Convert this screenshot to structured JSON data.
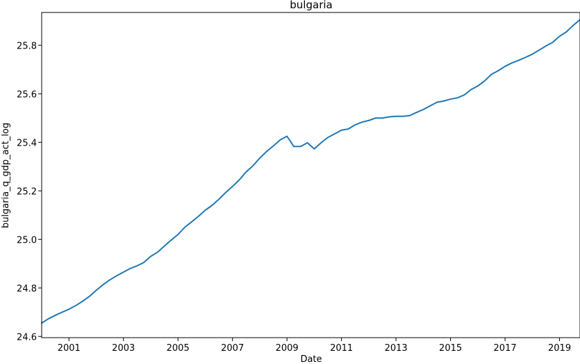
{
  "chart_data": {
    "type": "line",
    "title": "bulgaria",
    "xlabel": "Date",
    "ylabel": "bulgaria_q_gdp_act_log",
    "x_tick_labels": [
      "2001",
      "2003",
      "2005",
      "2007",
      "2009",
      "2011",
      "2013",
      "2015",
      "2017",
      "2019"
    ],
    "y_tick_labels": [
      "24.6",
      "24.8",
      "25.0",
      "25.2",
      "25.4",
      "25.6",
      "25.8"
    ],
    "y_ticks": [
      24.6,
      24.8,
      25.0,
      25.2,
      25.4,
      25.6,
      25.8
    ],
    "x_ticks": [
      2001,
      2003,
      2005,
      2007,
      2009,
      2011,
      2013,
      2015,
      2017,
      2019
    ],
    "xlim": [
      2000.0,
      2019.75
    ],
    "ylim": [
      24.595,
      25.935
    ],
    "grid": false,
    "series_color": "#1f77b4",
    "series": [
      {
        "x": [
          2000.0,
          2000.25,
          2000.5,
          2000.75,
          2001.0,
          2001.25,
          2001.5,
          2001.75,
          2002.0,
          2002.25,
          2002.5,
          2002.75,
          2003.0,
          2003.25,
          2003.5,
          2003.75,
          2004.0,
          2004.25,
          2004.5,
          2004.75,
          2005.0,
          2005.25,
          2005.5,
          2005.75,
          2006.0,
          2006.25,
          2006.5,
          2006.75,
          2007.0,
          2007.25,
          2007.5,
          2007.75,
          2008.0,
          2008.25,
          2008.5,
          2008.75,
          2009.0,
          2009.25,
          2009.5,
          2009.75,
          2010.0,
          2010.25,
          2010.5,
          2010.75,
          2011.0,
          2011.25,
          2011.5,
          2011.75,
          2012.0,
          2012.25,
          2012.5,
          2012.75,
          2013.0,
          2013.25,
          2013.5,
          2013.75,
          2014.0,
          2014.25,
          2014.5,
          2014.75,
          2015.0,
          2015.25,
          2015.5,
          2015.75,
          2016.0,
          2016.25,
          2016.5,
          2016.75,
          2017.0,
          2017.25,
          2017.5,
          2017.75,
          2018.0,
          2018.25,
          2018.5,
          2018.75,
          2019.0,
          2019.25,
          2019.5,
          2019.75
        ],
        "y": [
          24.655,
          24.673,
          24.687,
          24.7,
          24.712,
          24.727,
          24.745,
          24.765,
          24.79,
          24.813,
          24.833,
          24.85,
          24.865,
          24.88,
          24.891,
          24.905,
          24.93,
          24.947,
          24.972,
          24.997,
          25.02,
          25.05,
          25.072,
          25.095,
          25.12,
          25.14,
          25.165,
          25.193,
          25.218,
          25.245,
          25.278,
          25.303,
          25.335,
          25.362,
          25.385,
          25.41,
          25.425,
          25.383,
          25.383,
          25.398,
          25.373,
          25.398,
          25.42,
          25.435,
          25.45,
          25.455,
          25.472,
          25.483,
          25.49,
          25.5,
          25.5,
          25.505,
          25.507,
          25.507,
          25.51,
          25.523,
          25.535,
          25.55,
          25.565,
          25.57,
          25.578,
          25.583,
          25.595,
          25.617,
          25.632,
          25.653,
          25.68,
          25.695,
          25.713,
          25.727,
          25.738,
          25.75,
          25.763,
          25.78,
          25.797,
          25.812,
          25.837,
          25.855,
          25.882,
          25.905
        ]
      }
    ]
  }
}
